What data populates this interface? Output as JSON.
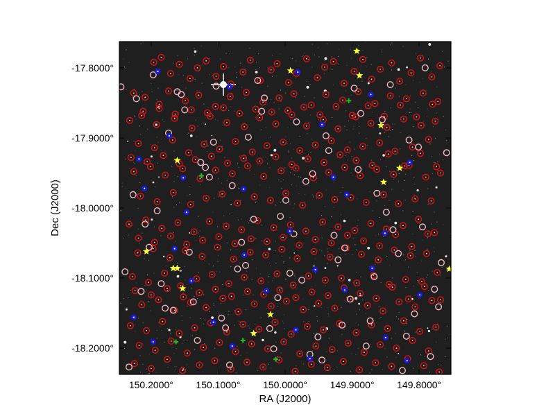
{
  "chart_data": {
    "type": "scatter",
    "title": "",
    "xlabel": "RA (J2000)",
    "ylabel": "Dec (J2000)",
    "xlim": [
      150.2475,
      149.7525
    ],
    "ylim": [
      -18.2375,
      -17.7625
    ],
    "grid": false,
    "background": "#1f1f1f",
    "x_ticks": [
      {
        "value": 150.2,
        "label": "150.2000°"
      },
      {
        "value": 150.1,
        "label": "150.1000°"
      },
      {
        "value": 150.0,
        "label": "150.0000°"
      },
      {
        "value": 149.9,
        "label": "149.9000°"
      },
      {
        "value": 149.8,
        "label": "149.8000°"
      }
    ],
    "y_ticks": [
      {
        "value": -17.8,
        "label": "-17.8000°"
      },
      {
        "value": -17.9,
        "label": "-17.9000°"
      },
      {
        "value": -18.0,
        "label": "-18.0000°"
      },
      {
        "value": -18.1,
        "label": "-18.1000°"
      },
      {
        "value": -18.2,
        "label": "-18.2000°"
      }
    ],
    "colors": {
      "red-circle": "#e01010",
      "pink-circle": "#f0b8c0",
      "blue-marker": "#1a1ad0",
      "yellow-star": "#ffff33",
      "green-marker": "#1fbf1f"
    },
    "series": [
      {
        "marker": "red-circle",
        "x": [
          150.196,
          150.185,
          150.171,
          150.158,
          150.142,
          150.131,
          150.118,
          150.103,
          150.092,
          150.081,
          150.063,
          150.052,
          150.037,
          150.021,
          150.012,
          149.995,
          149.983,
          149.968,
          149.952,
          149.941,
          149.928,
          149.912,
          149.897,
          149.884,
          149.871,
          149.858,
          149.841,
          149.829,
          149.812,
          149.798,
          149.781,
          149.769,
          150.226,
          150.209,
          150.188,
          150.174,
          150.149,
          150.129,
          150.104,
          150.082,
          150.058,
          150.033,
          150.009,
          149.987,
          149.961,
          149.939,
          149.914,
          149.891,
          149.866,
          149.843,
          149.819,
          149.794,
          149.772,
          150.232,
          150.214,
          150.192,
          150.165,
          150.139,
          150.112,
          150.087,
          150.061,
          150.038,
          150.014,
          149.99,
          149.968,
          149.943,
          149.921,
          149.895,
          149.872,
          149.848,
          149.823,
          149.797,
          149.776,
          150.219,
          150.195,
          150.168,
          150.144,
          150.121,
          150.098,
          150.074,
          150.049,
          150.027,
          150.003,
          149.978,
          149.955,
          149.931,
          149.907,
          149.884,
          149.859,
          149.836,
          149.81,
          149.786,
          150.226,
          150.201,
          150.179,
          150.153,
          150.127,
          150.104,
          150.079,
          150.056,
          150.032,
          150.006,
          149.984,
          149.958,
          149.935,
          149.911,
          149.888,
          149.863,
          149.838,
          149.815,
          149.79,
          149.768,
          150.216,
          150.191,
          150.167,
          150.141,
          150.118,
          150.094,
          150.071,
          150.046,
          150.022,
          149.999,
          149.974,
          149.949,
          149.926,
          149.902,
          149.879,
          149.853,
          149.831,
          149.806,
          149.782,
          150.233,
          150.208,
          150.184,
          150.16,
          150.136,
          150.113,
          150.088,
          150.065,
          150.041,
          150.017,
          149.992,
          149.969,
          149.944,
          149.921,
          149.896,
          149.872,
          149.849,
          149.824,
          149.801,
          149.777,
          150.22,
          150.197,
          150.172,
          150.149,
          150.124,
          150.101,
          150.077,
          150.052,
          150.029,
          150.005,
          149.982,
          149.957,
          149.933,
          149.909,
          149.886,
          149.861,
          149.837,
          149.813,
          149.789,
          150.228,
          150.204,
          150.18,
          150.156,
          150.132,
          150.109,
          150.084,
          150.061,
          150.036,
          150.012,
          149.988,
          149.965,
          149.94,
          149.916,
          149.893,
          149.868,
          149.845,
          149.82,
          149.796,
          149.773,
          150.214,
          150.189,
          150.165,
          150.141,
          150.118,
          150.093,
          150.07,
          150.046,
          150.021,
          149.998,
          149.973,
          149.95,
          149.926,
          149.902,
          149.877,
          149.854,
          149.83,
          149.806,
          149.781,
          150.231,
          150.207,
          150.183,
          150.158,
          150.135,
          150.111,
          150.087,
          150.063,
          150.039,
          150.015,
          149.991,
          149.967,
          149.943,
          149.919,
          149.894,
          149.871,
          149.847,
          149.823,
          149.799,
          149.775,
          150.218,
          150.194,
          150.17,
          150.146,
          150.122,
          150.098,
          150.074,
          150.05,
          150.026,
          150.002,
          149.978,
          149.954,
          149.93,
          149.906,
          149.882,
          149.858,
          149.834,
          149.81,
          149.786,
          150.225,
          150.2,
          150.176,
          150.153,
          150.128,
          150.105,
          150.081,
          150.057,
          150.033,
          150.009,
          149.985,
          149.961,
          149.937,
          149.913,
          149.889,
          149.865,
          149.841,
          149.817,
          149.793,
          149.77,
          150.212,
          150.188,
          150.164,
          150.14,
          150.116,
          150.092,
          150.068,
          150.044,
          150.02,
          149.996,
          149.972,
          149.948,
          149.924,
          149.9,
          149.876,
          149.852,
          149.828,
          149.804,
          149.78,
          150.23,
          150.206,
          150.182,
          150.158,
          150.134,
          150.11,
          150.086,
          150.062,
          150.038,
          150.014,
          149.99,
          149.966,
          149.942,
          149.918,
          149.894,
          149.87,
          149.846,
          149.822,
          149.798,
          149.774,
          150.219,
          150.195,
          150.171,
          150.147,
          150.123,
          150.099,
          150.075,
          150.051,
          150.027,
          150.003,
          149.979,
          149.955,
          149.931,
          149.907,
          149.883,
          149.859,
          149.835,
          149.811,
          149.787,
          150.224,
          150.2,
          150.176,
          150.152,
          150.128,
          150.104,
          150.08,
          150.056,
          150.032,
          150.008,
          149.984,
          149.96,
          149.936,
          149.912,
          149.888,
          149.864,
          149.84,
          149.816,
          149.792,
          149.768
        ],
        "y": [
          -17.792,
          -17.785,
          -17.808,
          -17.795,
          -17.815,
          -17.8,
          -17.79,
          -17.812,
          -17.798,
          -17.823,
          -17.806,
          -17.789,
          -17.818,
          -17.803,
          -17.794,
          -17.821,
          -17.808,
          -17.787,
          -17.814,
          -17.799,
          -17.791,
          -17.822,
          -17.805,
          -17.788,
          -17.816,
          -17.802,
          -17.793,
          -17.819,
          -17.807,
          -17.786,
          -17.813,
          -17.797,
          -17.836,
          -17.842,
          -17.852,
          -17.833,
          -17.847,
          -17.839,
          -17.855,
          -17.841,
          -17.835,
          -17.849,
          -17.843,
          -17.837,
          -17.853,
          -17.838,
          -17.846,
          -17.834,
          -17.851,
          -17.84,
          -17.844,
          -17.836,
          -17.848,
          -17.875,
          -17.868,
          -17.881,
          -17.872,
          -17.886,
          -17.869,
          -17.878,
          -17.884,
          -17.871,
          -17.88,
          -17.867,
          -17.883,
          -17.874,
          -17.887,
          -17.87,
          -17.879,
          -17.885,
          -17.873,
          -17.882,
          -17.876,
          -17.908,
          -17.914,
          -17.903,
          -17.921,
          -17.909,
          -17.916,
          -17.905,
          -17.92,
          -17.911,
          -17.906,
          -17.918,
          -17.91,
          -17.904,
          -17.917,
          -17.912,
          -17.907,
          -17.919,
          -17.913,
          -17.902,
          -17.948,
          -17.941,
          -17.953,
          -17.944,
          -17.958,
          -17.946,
          -17.951,
          -17.94,
          -17.955,
          -17.947,
          -17.943,
          -17.957,
          -17.949,
          -17.942,
          -17.954,
          -17.945,
          -17.952,
          -17.939,
          -17.956,
          -17.95,
          -17.983,
          -17.991,
          -17.978,
          -17.995,
          -17.986,
          -17.98,
          -17.993,
          -17.984,
          -17.989,
          -17.979,
          -17.996,
          -17.982,
          -17.988,
          -17.985,
          -17.992,
          -17.981,
          -17.994,
          -17.987,
          -17.99,
          -18.023,
          -18.017,
          -18.029,
          -18.021,
          -18.034,
          -18.019,
          -18.026,
          -18.031,
          -18.018,
          -18.028,
          -18.024,
          -18.033,
          -18.02,
          -18.027,
          -18.032,
          -18.022,
          -18.03,
          -18.025,
          -18.016,
          -18.035,
          -18.064,
          -18.058,
          -18.071,
          -18.061,
          -18.069,
          -18.056,
          -18.073,
          -18.063,
          -18.067,
          -18.059,
          -18.072,
          -18.062,
          -18.07,
          -18.057,
          -18.066,
          -18.074,
          -18.06,
          -18.068,
          -18.065,
          -18.098,
          -18.106,
          -18.093,
          -18.111,
          -18.101,
          -18.095,
          -18.108,
          -18.099,
          -18.104,
          -18.094,
          -18.11,
          -18.097,
          -18.103,
          -18.1,
          -18.107,
          -18.096,
          -18.109,
          -18.102,
          -18.105,
          -18.092,
          -18.138,
          -18.131,
          -18.146,
          -18.135,
          -18.142,
          -18.129,
          -18.148,
          -18.137,
          -18.14,
          -18.133,
          -18.145,
          -18.136,
          -18.143,
          -18.13,
          -18.139,
          -18.147,
          -18.134,
          -18.141,
          -18.132,
          -18.168,
          -18.175,
          -18.162,
          -18.179,
          -18.171,
          -18.164,
          -18.177,
          -18.166,
          -18.173,
          -18.163,
          -18.18,
          -18.169,
          -18.174,
          -18.165,
          -18.178,
          -18.167,
          -18.172,
          -18.161,
          -18.176,
          -18.17,
          -18.196,
          -18.203,
          -18.19,
          -18.207,
          -18.199,
          -18.192,
          -18.205,
          -18.194,
          -18.201,
          -18.191,
          -18.208,
          -18.197,
          -18.202,
          -18.193,
          -18.206,
          -18.195,
          -18.2,
          -18.189,
          -18.204,
          -18.222,
          -18.229,
          -18.216,
          -18.232,
          -18.224,
          -18.218,
          -18.23,
          -18.22,
          -18.227,
          -18.217,
          -18.233,
          -18.223,
          -18.228,
          -18.219,
          -18.231,
          -18.221,
          -18.226,
          -18.215,
          -18.225,
          -18.234,
          -17.862,
          -17.858,
          -17.866,
          -17.86,
          -17.864,
          -17.857,
          -17.865,
          -17.859,
          -17.863,
          -17.861,
          -17.856,
          -17.867,
          -17.855,
          -17.868,
          -17.854,
          -17.869,
          -17.853,
          -17.87,
          -17.852,
          -17.928,
          -17.934,
          -17.925,
          -17.937,
          -17.931,
          -17.926,
          -17.936,
          -17.929,
          -17.933,
          -17.927,
          -17.938,
          -17.93,
          -17.935,
          -17.924,
          -17.932,
          -17.939,
          -17.923,
          -17.94,
          -17.922,
          -17.941,
          -18.043,
          -18.049,
          -18.04,
          -18.052,
          -18.046,
          -18.041,
          -18.051,
          -18.044,
          -18.048,
          -18.042,
          -18.053,
          -18.045,
          -18.05,
          -18.039,
          -18.047,
          -18.054,
          -18.038,
          -18.055,
          -18.037,
          -18.118,
          -18.124,
          -18.115,
          -18.127,
          -18.121,
          -18.116,
          -18.126,
          -18.119,
          -18.123,
          -18.117,
          -18.128,
          -18.12,
          -18.125,
          -18.114,
          -18.122,
          -18.129,
          -18.113,
          -18.13,
          -18.112,
          -18.131
        ]
      },
      {
        "marker": "pink-circle",
        "x": [
          150.245,
          150.222,
          150.197,
          150.174,
          150.15,
          150.126,
          150.103,
          150.079,
          150.055,
          150.031,
          150.007,
          149.983,
          149.959,
          149.935,
          149.911,
          149.887,
          149.863,
          149.839,
          149.815,
          149.791,
          149.767,
          150.239,
          150.215,
          150.191,
          150.167,
          150.143,
          150.119,
          150.095,
          150.071,
          150.047,
          150.023,
          149.999,
          149.975,
          149.951,
          149.927,
          149.903,
          149.879,
          149.855,
          149.831,
          149.807,
          149.783,
          149.759,
          150.233,
          150.209,
          150.185,
          150.161,
          150.137,
          150.113,
          150.089,
          150.065,
          150.041,
          150.017,
          149.993,
          149.969,
          149.945,
          149.921,
          149.897,
          149.873,
          149.849,
          149.825,
          149.801,
          149.777,
          150.227,
          150.203,
          150.179,
          150.155,
          150.131,
          150.107,
          150.083,
          150.059,
          150.035,
          150.011,
          149.987,
          149.963,
          149.939,
          149.915,
          149.891,
          149.867,
          149.843,
          149.819,
          149.795,
          149.771
        ],
        "y": [
          -17.827,
          -17.844,
          -17.81,
          -17.893,
          -17.86,
          -17.935,
          -17.826,
          -17.968,
          -17.899,
          -17.843,
          -18.012,
          -17.877,
          -17.951,
          -17.918,
          -18.057,
          -17.865,
          -17.979,
          -18.031,
          -17.903,
          -17.8,
          -18.078,
          -18.091,
          -18.119,
          -18.004,
          -18.146,
          -18.063,
          -17.942,
          -18.157,
          -18.087,
          -18.016,
          -18.172,
          -17.989,
          -18.103,
          -18.184,
          -18.039,
          -18.13,
          -18.197,
          -17.874,
          -18.065,
          -18.151,
          -18.212,
          -17.921,
          -18.227,
          -18.023,
          -18.108,
          -17.834,
          -18.134,
          -17.956,
          -18.171,
          -18.049,
          -17.818,
          -18.201,
          -18.093,
          -17.962,
          -18.217,
          -18.074,
          -17.829,
          -18.161,
          -18.006,
          -18.232,
          -17.913,
          -18.116,
          -17.981,
          -18.056,
          -18.143,
          -17.838,
          -18.189,
          -17.906,
          -18.224,
          -18.082,
          -17.862,
          -18.128,
          -18.037,
          -18.209,
          -17.897,
          -18.167,
          -17.945,
          -18.098,
          -17.824,
          -18.183,
          -18.027,
          -18.141
        ]
      },
      {
        "marker": "blue-marker",
        "x": [
          150.19,
          150.083,
          149.981,
          149.872,
          150.173,
          149.945,
          150.218,
          150.152,
          149.928,
          150.062,
          149.814,
          150.21,
          149.908,
          150.147,
          149.993,
          149.851,
          150.165,
          150.061,
          149.955,
          149.87,
          150.14,
          150.028,
          149.911,
          149.799,
          150.226,
          150.107,
          149.984,
          149.85,
          150.197,
          150.079,
          149.963,
          149.818
        ],
        "y": [
          -17.805,
          -17.827,
          -17.806,
          -17.838,
          -17.897,
          -17.881,
          -17.93,
          -17.957,
          -17.956,
          -17.973,
          -17.935,
          -17.972,
          -17.981,
          -18.006,
          -18.033,
          -18.036,
          -18.058,
          -18.067,
          -18.088,
          -18.086,
          -18.104,
          -18.118,
          -18.117,
          -18.124,
          -18.156,
          -18.163,
          -18.174,
          -18.185,
          -18.191,
          -18.197,
          -18.215,
          -18.218
        ]
      },
      {
        "marker": "yellow-star",
        "x": [
          149.893,
          149.992,
          149.889,
          149.857,
          150.161,
          149.829,
          149.853,
          150.207,
          150.161,
          150.167,
          149.755,
          150.153,
          150.022,
          150.047
        ],
        "y": [
          -17.776,
          -17.804,
          -17.811,
          -17.882,
          -17.932,
          -17.943,
          -17.963,
          -18.062,
          -18.086,
          -18.086,
          -18.087,
          -18.115,
          -18.152,
          -18.179
        ]
      },
      {
        "marker": "green-marker",
        "x": [
          149.905,
          150.125,
          150.063,
          150.163,
          150.014
        ],
        "y": [
          -17.847,
          -17.954,
          -18.189,
          -18.191,
          -18.216
        ]
      }
    ]
  }
}
